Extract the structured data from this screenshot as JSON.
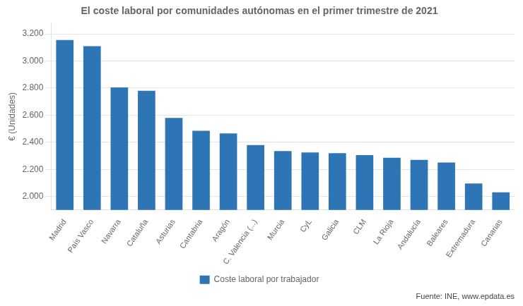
{
  "chart_data": {
    "type": "bar",
    "title": "El coste laboral por comunidades autónomas en el primer trimestre de 2021",
    "ylabel": "€ (Unidades)",
    "categories": [
      "Madrid",
      "País Vasco",
      "Navarra",
      "Cataluña",
      "Asturias",
      "Cantabria",
      "Aragón",
      "C. Valencia (...)",
      "Murcia",
      "CyL",
      "Galicia",
      "CLM",
      "La Rioja",
      "Andalucía",
      "Baleares",
      "Extremadura",
      "Canarias"
    ],
    "series": [
      {
        "name": "Coste laboral por trabajador",
        "color": "#2e75b6",
        "values": [
          3155,
          3110,
          2805,
          2780,
          2580,
          2485,
          2465,
          2380,
          2335,
          2325,
          2320,
          2305,
          2285,
          2270,
          2250,
          2095,
          2030
        ]
      }
    ],
    "ylim": [
      1900,
      3280
    ],
    "yticks": [
      {
        "value": 2000,
        "label": "2.000"
      },
      {
        "value": 2200,
        "label": "2.200"
      },
      {
        "value": 2400,
        "label": "2.400"
      },
      {
        "value": 2600,
        "label": "2.600"
      },
      {
        "value": 2800,
        "label": "2.800"
      },
      {
        "value": 3000,
        "label": "3.000"
      },
      {
        "value": 3200,
        "label": "3.200"
      }
    ],
    "grid": "y",
    "legend": "bottom",
    "annotations": [
      "Fuente: INE, www.epdata.es"
    ]
  }
}
